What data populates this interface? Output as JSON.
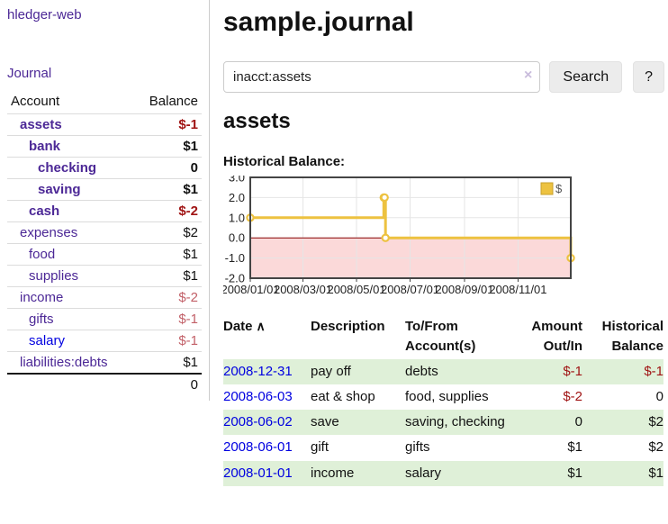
{
  "sidebar": {
    "brand": "hledger-web",
    "nav": {
      "journal": "Journal"
    },
    "accounts": {
      "headers": {
        "account": "Account",
        "balance": "Balance"
      },
      "rows": [
        {
          "label": "assets",
          "balance": "$-1",
          "indent": 1,
          "bold": true,
          "balance_class": "neg-strong",
          "link_class": ""
        },
        {
          "label": "bank",
          "balance": "$1",
          "indent": 2,
          "bold": true,
          "balance_class": "",
          "link_class": ""
        },
        {
          "label": "checking",
          "balance": "0",
          "indent": 3,
          "bold": true,
          "balance_class": "",
          "link_class": ""
        },
        {
          "label": "saving",
          "balance": "$1",
          "indent": 3,
          "bold": true,
          "balance_class": "",
          "link_class": ""
        },
        {
          "label": "cash",
          "balance": "$-2",
          "indent": 2,
          "bold": true,
          "balance_class": "neg-strong",
          "link_class": ""
        },
        {
          "label": "expenses",
          "balance": "$2",
          "indent": 1,
          "bold": false,
          "balance_class": "",
          "link_class": ""
        },
        {
          "label": "food",
          "balance": "$1",
          "indent": 2,
          "bold": false,
          "balance_class": "",
          "link_class": ""
        },
        {
          "label": "supplies",
          "balance": "$1",
          "indent": 2,
          "bold": false,
          "balance_class": "",
          "link_class": ""
        },
        {
          "label": "income",
          "balance": "$-2",
          "indent": 1,
          "bold": false,
          "balance_class": "neg-soft",
          "link_class": ""
        },
        {
          "label": "gifts",
          "balance": "$-1",
          "indent": 2,
          "bold": false,
          "balance_class": "neg-soft",
          "link_class": ""
        },
        {
          "label": "salary",
          "balance": "$-1",
          "indent": 2,
          "bold": false,
          "balance_class": "neg-soft",
          "link_class": "blue"
        },
        {
          "label": "liabilities:debts",
          "balance": "$1",
          "indent": 1,
          "bold": false,
          "balance_class": "",
          "link_class": ""
        }
      ],
      "total": "0"
    }
  },
  "main": {
    "title": "sample.journal",
    "account_heading": "assets"
  },
  "search": {
    "value": "inacct:assets",
    "clear_icon": "×",
    "button_label": "Search",
    "help_label": "?"
  },
  "chart_data": {
    "type": "line",
    "title": "Historical Balance:",
    "step": true,
    "series": [
      {
        "name": "$",
        "color": "#edc240",
        "points": [
          [
            "2008-01-01",
            1
          ],
          [
            "2008-06-01",
            2
          ],
          [
            "2008-06-02",
            2
          ],
          [
            "2008-06-03",
            0
          ],
          [
            "2008-12-31",
            -1
          ]
        ]
      }
    ],
    "x_range": [
      "2008-01-01",
      "2008-12-31"
    ],
    "ylim": [
      -2,
      3
    ],
    "yticks": [
      "3.0",
      "2.0",
      "1.0",
      "0.0",
      "-1.0",
      "-2.0"
    ],
    "xticks": [
      "2008/01/01",
      "2008/03/01",
      "2008/05/01",
      "2008/07/01",
      "2008/09/01",
      "2008/11/01"
    ],
    "grid": true,
    "legend_position": "top-right",
    "legend": [
      "$"
    ],
    "colors": {
      "negative_fill": "#fbd9d9",
      "zero_line": "#8b0000",
      "gridline": "#e5e5e5",
      "border": "#444444",
      "marker_fill": "#ffffff"
    }
  },
  "register": {
    "headers": {
      "date": "Date",
      "sort_icon": "∧",
      "description": "Description",
      "account_line1": "To/From",
      "account_line2": "Account(s)",
      "amount_line1": "Amount",
      "amount_line2": "Out/In",
      "balance_line1": "Historical",
      "balance_line2": "Balance"
    },
    "rows": [
      {
        "date": "2008-12-31",
        "description": "pay off",
        "accounts": "debts",
        "amount": "$-1",
        "amount_neg": true,
        "balance": "$-1",
        "balance_neg": true
      },
      {
        "date": "2008-06-03",
        "description": "eat & shop",
        "accounts": "food, supplies",
        "amount": "$-2",
        "amount_neg": true,
        "balance": "0",
        "balance_neg": false
      },
      {
        "date": "2008-06-02",
        "description": "save",
        "accounts": "saving, checking",
        "amount": "0",
        "amount_neg": false,
        "balance": "$2",
        "balance_neg": false
      },
      {
        "date": "2008-06-01",
        "description": "gift",
        "accounts": "gifts",
        "amount": "$1",
        "amount_neg": false,
        "balance": "$2",
        "balance_neg": false
      },
      {
        "date": "2008-01-01",
        "description": "income",
        "accounts": "salary",
        "amount": "$1",
        "amount_neg": false,
        "balance": "$1",
        "balance_neg": false
      }
    ]
  },
  "colors": {
    "link_purple": "#4c2896",
    "link_blue": "#0000e0",
    "negative_strong": "#a01414",
    "negative_soft": "#c26068",
    "stripe_green": "#dff0d8",
    "series_yellow": "#edc240"
  }
}
